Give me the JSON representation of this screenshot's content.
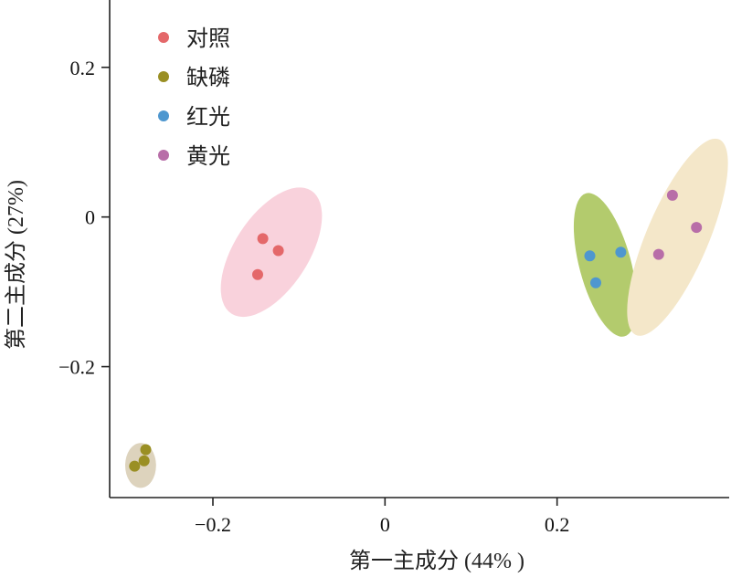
{
  "chart_data": {
    "type": "scatter",
    "xlabel": "第一主成分 (44% )",
    "ylabel": "第二主成分 (27%)",
    "xlim": [
      -0.32,
      0.4
    ],
    "ylim": [
      -0.375,
      0.29
    ],
    "x_ticks": [
      {
        "value": -0.2,
        "label": "−0.2"
      },
      {
        "value": 0,
        "label": "0"
      },
      {
        "value": 0.2,
        "label": "0.2"
      }
    ],
    "y_ticks": [
      {
        "value": 0.2,
        "label": "0.2"
      },
      {
        "value": 0,
        "label": "0"
      },
      {
        "value": -0.2,
        "label": "−0.2"
      }
    ],
    "legend_position": "top-left",
    "series": [
      {
        "name": "对照",
        "color": "#e4686a",
        "ellipse_color": "#f9d2dc",
        "ellipse": {
          "cx": -0.132,
          "cy": -0.047,
          "rx": 0.043,
          "ry": 0.098,
          "angle": 33
        },
        "points": [
          [
            -0.142,
            -0.029
          ],
          [
            -0.124,
            -0.045
          ],
          [
            -0.148,
            -0.077
          ]
        ]
      },
      {
        "name": "缺磷",
        "color": "#9a8f24",
        "ellipse_color": "#ddd3bd",
        "ellipse": {
          "cx": -0.284,
          "cy": -0.332,
          "rx": 0.018,
          "ry": 0.03,
          "angle": 0
        },
        "points": [
          [
            -0.278,
            -0.311
          ],
          [
            -0.28,
            -0.326
          ],
          [
            -0.291,
            -0.333
          ]
        ]
      },
      {
        "name": "红光",
        "color": "#4e97cf",
        "ellipse_color": "#b3cb6d",
        "ellipse": {
          "cx": 0.256,
          "cy": -0.064,
          "rx": 0.03,
          "ry": 0.099,
          "angle": -15
        },
        "points": [
          [
            0.238,
            -0.052
          ],
          [
            0.274,
            -0.047
          ],
          [
            0.245,
            -0.088
          ]
        ]
      },
      {
        "name": "黄光",
        "color": "#b86ea8",
        "ellipse_color": "#f4e7c9",
        "ellipse": {
          "cx": 0.34,
          "cy": -0.027,
          "rx": 0.036,
          "ry": 0.142,
          "angle": 23
        },
        "points": [
          [
            0.334,
            0.029
          ],
          [
            0.362,
            -0.014
          ],
          [
            0.318,
            -0.05
          ]
        ]
      }
    ]
  }
}
